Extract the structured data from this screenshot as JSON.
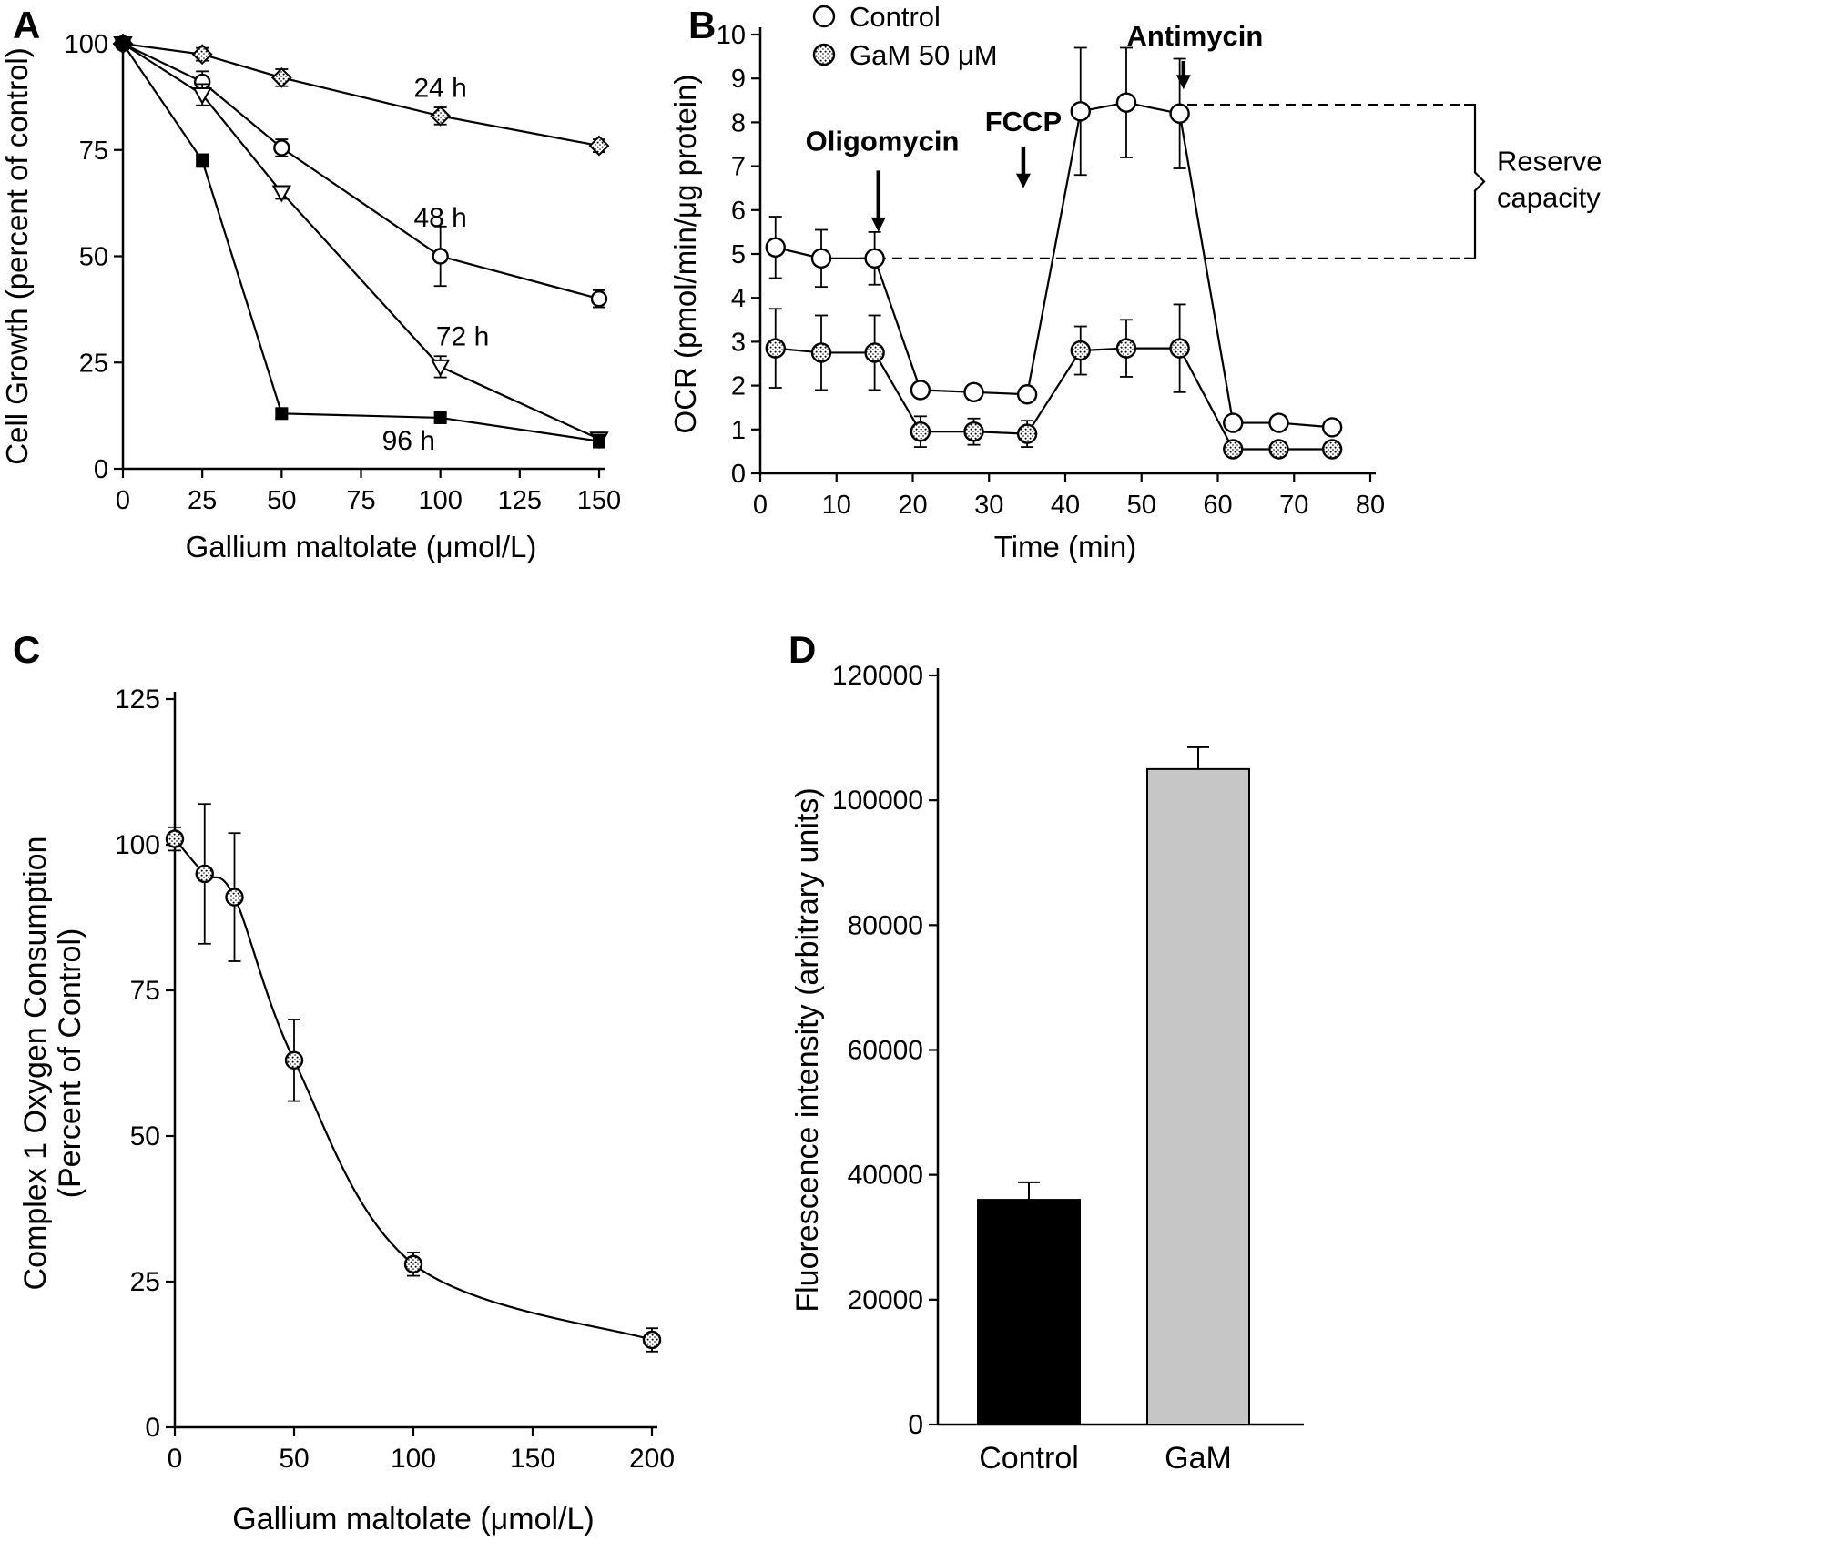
{
  "chart_data": [
    {
      "panel": "A",
      "type": "line",
      "xlabel": "Gallium maltolate (μmol/L)",
      "ylabel": "Cell Growth (percent of control)",
      "xlim": [
        0,
        150
      ],
      "xticks": [
        0,
        25,
        50,
        75,
        100,
        125,
        150
      ],
      "ylim": [
        0,
        100
      ],
      "yticks": [
        0,
        25,
        50,
        75,
        100
      ],
      "x": [
        0,
        25,
        50,
        100,
        150
      ],
      "series": [
        {
          "name": "24 h",
          "marker": "diamond",
          "values": [
            100,
            97.5,
            92,
            83,
            76
          ],
          "errors": [
            0.8,
            1.5,
            2,
            2,
            1.5
          ]
        },
        {
          "name": "48 h",
          "marker": "circle-open",
          "values": [
            100,
            91,
            75.5,
            50,
            40
          ],
          "errors": [
            0.8,
            2.5,
            2,
            7,
            2
          ]
        },
        {
          "name": "72 h",
          "marker": "triangle-open",
          "values": [
            100,
            88,
            65,
            24,
            7
          ],
          "errors": [
            0.8,
            2.5,
            1.5,
            2.5,
            1.5
          ]
        },
        {
          "name": "96 h",
          "marker": "square",
          "values": [
            100,
            72.5,
            13,
            12,
            6.5
          ],
          "errors": [
            0.8,
            1.5,
            1,
            1,
            1.5
          ]
        }
      ],
      "series_labels": [
        {
          "text": "24 h",
          "x": 100,
          "y": 87.5
        },
        {
          "text": "48 h",
          "x": 100,
          "y": 57
        },
        {
          "text": "72 h",
          "x": 107,
          "y": 29
        },
        {
          "text": "96 h",
          "x": 90,
          "y": 4.5
        }
      ]
    },
    {
      "panel": "B",
      "type": "line",
      "xlabel": "Time (min)",
      "ylabel": "OCR (pmol/min/μg protein)",
      "xlim": [
        0,
        80
      ],
      "xticks": [
        0,
        10,
        20,
        30,
        40,
        50,
        60,
        70,
        80
      ],
      "ylim": [
        0,
        10
      ],
      "yticks": [
        0,
        1,
        2,
        3,
        4,
        5,
        6,
        7,
        8,
        9,
        10
      ],
      "x": [
        2,
        8,
        15,
        21,
        28,
        35,
        42,
        48,
        55,
        62,
        68,
        75
      ],
      "series": [
        {
          "name": "Control",
          "marker": "circle-open",
          "values": [
            5.15,
            4.9,
            4.9,
            1.9,
            1.85,
            1.8,
            8.25,
            8.45,
            8.2,
            1.15,
            1.15,
            1.05
          ],
          "errors": [
            0.7,
            0.65,
            0.6,
            0.15,
            0.12,
            0.15,
            1.45,
            1.25,
            1.25,
            0.12,
            0.12,
            0.1
          ]
        },
        {
          "name": "GaM 50 μM",
          "marker": "circle-hatch",
          "values": [
            2.85,
            2.75,
            2.75,
            0.95,
            0.95,
            0.9,
            2.8,
            2.85,
            2.85,
            0.55,
            0.55,
            0.55
          ],
          "errors": [
            0.9,
            0.85,
            0.85,
            0.35,
            0.3,
            0.3,
            0.55,
            0.65,
            1.0,
            0.15,
            0.15,
            0.12
          ]
        }
      ],
      "legend": [
        "Control",
        "GaM 50 μM"
      ],
      "annotations": [
        {
          "text": "Oligomycin",
          "text_x": 16,
          "text_y": 7.35,
          "arrow_x": 15.5,
          "arrow_y1": 6.9,
          "arrow_y2": 5.5
        },
        {
          "text": "FCCP",
          "text_x": 34.5,
          "text_y": 7.8,
          "arrow_x": 34.5,
          "arrow_y1": 7.45,
          "arrow_y2": 6.5
        },
        {
          "text": "Antimycin",
          "text_x": 57,
          "text_y": 9.75,
          "arrow_x": 55.5,
          "arrow_y1": 9.4,
          "arrow_y2": 8.75
        }
      ],
      "dashed_lines": [
        {
          "y": 4.9,
          "x_from": 13
        },
        {
          "y": 8.4,
          "x_from": 56
        }
      ],
      "bracket_label": [
        "Reserve",
        "capacity"
      ]
    },
    {
      "panel": "C",
      "type": "line",
      "smooth": true,
      "xlabel": "Gallium maltolate (μmol/L)",
      "ylabel": "Complex 1 Oxygen Consumption\n(Percent of Control)",
      "xlim": [
        0,
        200
      ],
      "xticks": [
        0,
        50,
        100,
        150,
        200
      ],
      "ylim": [
        0,
        125
      ],
      "yticks": [
        0,
        25,
        50,
        75,
        100,
        125
      ],
      "x": [
        0,
        12.5,
        25,
        50,
        100,
        200
      ],
      "series": [
        {
          "name": "Complex 1 oxygen consumption",
          "marker": "circle-hatch",
          "values": [
            101,
            95,
            91,
            63,
            28,
            15
          ],
          "errors": [
            2,
            12,
            11,
            7,
            2,
            2
          ]
        }
      ]
    },
    {
      "panel": "D",
      "type": "bar",
      "xlabel": "",
      "ylabel": "Fluorescence intensity (arbitrary units)",
      "categories": [
        "Control",
        "GaM"
      ],
      "values": [
        36000,
        105000
      ],
      "errors": [
        2800,
        3500
      ],
      "bar_colors": [
        "#000000",
        "#c6c6c6"
      ],
      "ylim": [
        0,
        120000
      ],
      "yticks": [
        0,
        20000,
        40000,
        60000,
        80000,
        100000,
        120000
      ]
    }
  ]
}
